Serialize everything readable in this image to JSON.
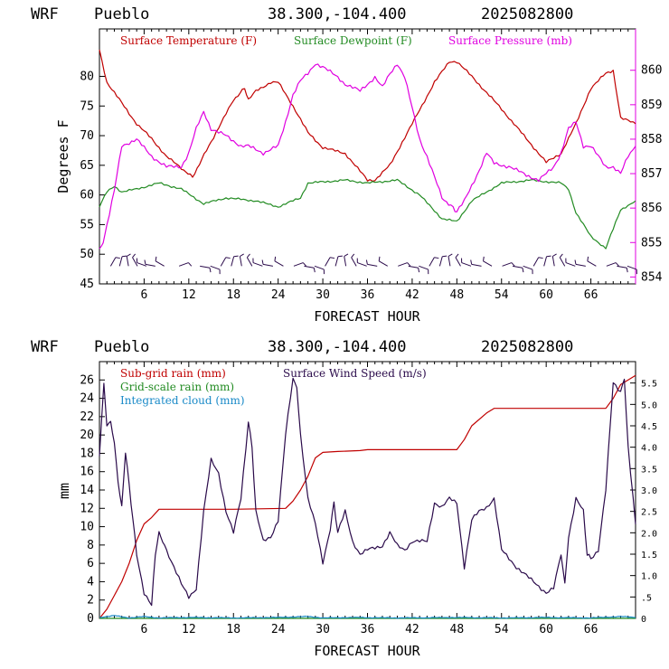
{
  "charts_header": [
    {
      "model": "WRF",
      "station": "Pueblo",
      "coords": "38.300,-104.400",
      "date": "2025082800"
    },
    {
      "model": "WRF",
      "station": "Pueblo",
      "coords": "38.300,-104.400",
      "date": "2025082800"
    }
  ],
  "chart_data": [
    {
      "type": "line",
      "xlabel": "FORECAST HOUR",
      "ylabel": "Degrees F",
      "xlim": [
        0,
        72
      ],
      "ylim": [
        45,
        88
      ],
      "y2lim": [
        853.8,
        861.2
      ],
      "xticks": [
        6,
        12,
        18,
        24,
        30,
        36,
        42,
        48,
        54,
        60,
        66
      ],
      "yticks": [
        45,
        50,
        55,
        60,
        65,
        70,
        75,
        80
      ],
      "y2ticks": [
        854,
        855,
        856,
        857,
        858,
        859,
        860
      ],
      "colors": {
        "temp": "#c00000",
        "dew": "#228b22",
        "pres": "#e000e0",
        "wind": "#2a0a4a"
      },
      "series": [
        {
          "name": "Surface Temperature (F)",
          "color": "#c00000",
          "axis": "left",
          "x": [
            0,
            1,
            3,
            5,
            7,
            9,
            11,
            12.5,
            15,
            18,
            19.5,
            20,
            21,
            23,
            24,
            26,
            28,
            30,
            33,
            35,
            36,
            37,
            39,
            42,
            45,
            47,
            48,
            50,
            54,
            57,
            60,
            62,
            64,
            66,
            68,
            69,
            70,
            72
          ],
          "y": [
            84.5,
            79,
            75.5,
            72,
            69.5,
            66.5,
            64.5,
            63,
            69,
            76,
            78,
            76,
            77.5,
            79,
            79,
            75,
            70.5,
            68,
            67,
            64,
            62.5,
            62.5,
            65,
            72,
            79,
            82.5,
            82.5,
            80,
            74.5,
            70,
            65.5,
            67,
            72,
            78,
            80.5,
            81,
            73,
            72
          ]
        },
        {
          "name": "Surface Dewpoint (F)",
          "color": "#228b22",
          "axis": "left",
          "x": [
            0,
            1,
            2,
            3,
            5,
            8,
            11,
            14,
            17,
            21,
            24,
            27,
            28,
            33,
            36,
            40,
            43,
            46,
            48,
            50,
            54,
            58,
            62,
            63,
            64,
            66,
            68,
            70,
            72
          ],
          "y": [
            58,
            60.5,
            61.5,
            60.5,
            61,
            62,
            61,
            58.5,
            59.5,
            59,
            58,
            59.5,
            62,
            62.5,
            62,
            62.5,
            60,
            56,
            55.5,
            59,
            62,
            62.5,
            62,
            61,
            57,
            53,
            51,
            57.5,
            59
          ]
        },
        {
          "name": "Surface Pressure (mb)",
          "color": "#e000e0",
          "axis": "right",
          "x": [
            0,
            0.5,
            1,
            2,
            3,
            5,
            7,
            9,
            11,
            12,
            13,
            14,
            15,
            17,
            19,
            20,
            22,
            23,
            24,
            25,
            26,
            27,
            28,
            29,
            30,
            32,
            33,
            35,
            37,
            38,
            39,
            40,
            41,
            43,
            44,
            46,
            47.5,
            48,
            49,
            51,
            52,
            53,
            55,
            57,
            59,
            61,
            62,
            63,
            64,
            65,
            66,
            67,
            68,
            69,
            70,
            71,
            72
          ],
          "y": [
            854.8,
            855,
            855.5,
            856.5,
            857.8,
            858.0,
            857.5,
            857.2,
            857.2,
            857.6,
            858.3,
            858.8,
            858.3,
            858.1,
            857.8,
            857.8,
            857.6,
            857.7,
            857.8,
            858.5,
            859.3,
            859.7,
            859.9,
            860.2,
            860.1,
            859.8,
            859.6,
            859.4,
            859.8,
            859.5,
            859.9,
            860.2,
            859.8,
            858.0,
            857.5,
            856.3,
            856.0,
            855.9,
            856.2,
            857.1,
            857.6,
            857.3,
            857.2,
            857.0,
            856.8,
            857.2,
            857.6,
            858.3,
            858.5,
            857.8,
            857.8,
            857.5,
            857.2,
            857.2,
            857.0,
            857.5,
            857.8
          ]
        }
      ],
      "wind_barbs": {
        "y_level": 48,
        "x": [
          1.5,
          2.7,
          3.9,
          5.1,
          6.3,
          7.5,
          8.7,
          10.7,
          13.5,
          14.9,
          16.3,
          17.7,
          19.1,
          20.5,
          21.9,
          23.3,
          24.7,
          26.1,
          27.5,
          28.9,
          30.3,
          31.7,
          33.1,
          34.5,
          35.9,
          37.3,
          38.7,
          40.1,
          41.5,
          42.9,
          44.3,
          45.7,
          47.1,
          48.5,
          49.9,
          51.3,
          52.7,
          54.1,
          55.5,
          56.9,
          58.3,
          59.7,
          61.1,
          62.5,
          63.9,
          65.3,
          66.7,
          68.1,
          69.5,
          70.9
        ]
      },
      "legend": [
        "Surface Temperature (F)",
        "Surface Dewpoint (F)",
        "Surface Pressure (mb)"
      ]
    },
    {
      "type": "line",
      "xlabel": "FORECAST HOUR",
      "ylabel": "mm",
      "xlim": [
        0,
        72
      ],
      "ylim": [
        0,
        28
      ],
      "y2lim": [
        0,
        6.0
      ],
      "xticks": [
        6,
        12,
        18,
        24,
        30,
        36,
        42,
        48,
        54,
        60,
        66
      ],
      "yticks": [
        0,
        2,
        4,
        6,
        8,
        10,
        12,
        14,
        16,
        18,
        20,
        22,
        24,
        26
      ],
      "y2ticks": [
        "0",
        ".5",
        "1.0",
        "1.5",
        "2.0",
        "2.5",
        "3.0",
        "3.5",
        "4.0",
        "4.5",
        "5.0",
        "5.5"
      ],
      "series": [
        {
          "name": "Sub-grid rain (mm)",
          "color": "#c00000",
          "axis": "left",
          "x": [
            0,
            1,
            2,
            3,
            4,
            5,
            6,
            7,
            8,
            12,
            18,
            25,
            26,
            27,
            28,
            29,
            30,
            32,
            35,
            36,
            48,
            49,
            50,
            52,
            53,
            56,
            60,
            65,
            68,
            69,
            70,
            72
          ],
          "y": [
            0,
            1,
            2.5,
            4,
            6,
            8.5,
            10.3,
            11,
            11.9,
            11.9,
            11.9,
            12,
            12.8,
            14,
            15.5,
            17.5,
            18.1,
            18.2,
            18.3,
            18.4,
            18.4,
            19.5,
            21,
            22.4,
            22.9,
            22.9,
            22.9,
            22.9,
            22.9,
            24,
            25.5,
            26.5
          ]
        },
        {
          "name": "Grid-scale rain (mm)",
          "color": "#228b22",
          "axis": "left",
          "x": [
            0,
            72
          ],
          "y": [
            0,
            0
          ]
        },
        {
          "name": "Integrated cloud (mm)",
          "color": "#1a8ac8",
          "axis": "left",
          "x": [
            0,
            2,
            4,
            6,
            8,
            12,
            18,
            24,
            28,
            30,
            34,
            40,
            48,
            54,
            60,
            66,
            70,
            72
          ],
          "y": [
            0.1,
            0.3,
            0.05,
            0.2,
            0.05,
            0.1,
            0.05,
            0.1,
            0.2,
            0.05,
            0.1,
            0.05,
            0.1,
            0.05,
            0.1,
            0.05,
            0.2,
            0.1
          ]
        },
        {
          "name": "Surface Wind Speed (m/s)",
          "color": "#2a0a4a",
          "axis": "right",
          "x": [
            0,
            0.6,
            1,
            1.5,
            2,
            2.5,
            3,
            3.5,
            4,
            4.5,
            5,
            6,
            7,
            7.5,
            8,
            8.5,
            9,
            10,
            11,
            12,
            13,
            14,
            15,
            16,
            17,
            18,
            19,
            20,
            20.5,
            21,
            22,
            23,
            24,
            25,
            26,
            26.5,
            27,
            28,
            29,
            30,
            31,
            31.5,
            32,
            33,
            34,
            35,
            36,
            38,
            39,
            40,
            41,
            42,
            44,
            45,
            46,
            47,
            48,
            49,
            50,
            51,
            52,
            53,
            54,
            56,
            58,
            60,
            61,
            62,
            62.5,
            63,
            64,
            65,
            65.5,
            66,
            67,
            68,
            69,
            70,
            70.5,
            71,
            72
          ],
          "y": [
            3.8,
            5.5,
            4.5,
            4.6,
            4.1,
            3.2,
            2.6,
            3.9,
            3.1,
            2.3,
            1.5,
            0.6,
            0.3,
            1.5,
            2.0,
            1.8,
            1.6,
            1.2,
            0.8,
            0.5,
            0.7,
            2.5,
            3.7,
            3.4,
            2.5,
            2.0,
            2.8,
            4.6,
            4.0,
            2.5,
            1.8,
            1.9,
            2.3,
            4.3,
            5.6,
            5.4,
            4.3,
            2.8,
            2.2,
            1.3,
            2.1,
            2.7,
            2.0,
            2.5,
            1.8,
            1.5,
            1.6,
            1.7,
            2.0,
            1.7,
            1.6,
            1.8,
            1.8,
            2.7,
            2.6,
            2.8,
            2.7,
            1.2,
            2.3,
            2.5,
            2.6,
            2.8,
            1.6,
            1.2,
            0.9,
            0.6,
            0.7,
            1.5,
            0.8,
            1.9,
            2.8,
            2.5,
            1.5,
            1.4,
            1.6,
            3.0,
            5.5,
            5.3,
            5.6,
            4.0,
            2.2
          ]
        }
      ],
      "legend": [
        "Sub-grid rain (mm)",
        "Surface Wind Speed (m/s)",
        "Grid-scale rain (mm)",
        "Integrated cloud (mm)"
      ]
    }
  ]
}
